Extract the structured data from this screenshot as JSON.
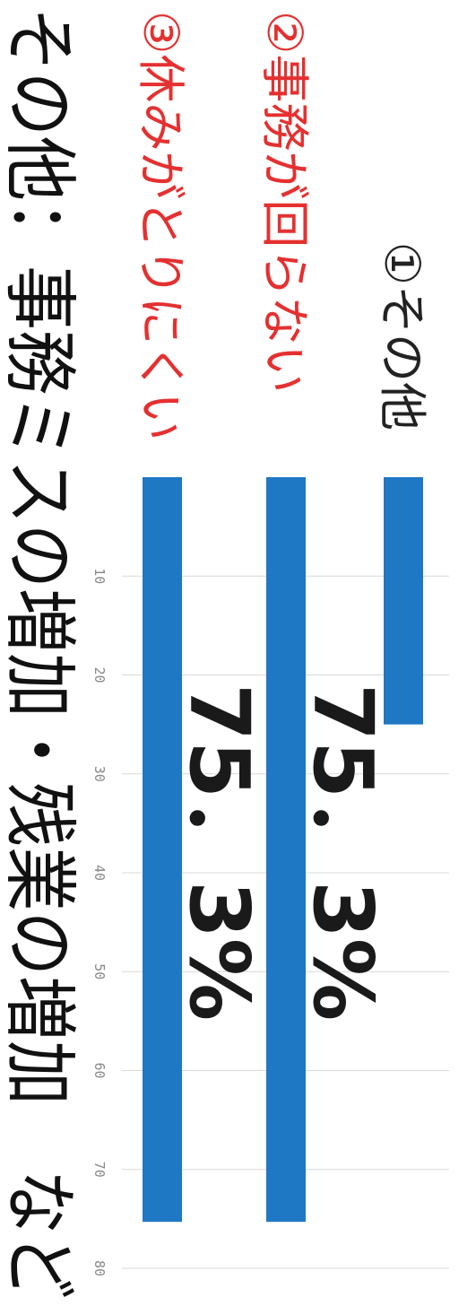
{
  "colors": {
    "bar": "#1f78c4",
    "highlight_label": "#e53030",
    "normal_label": "#222222",
    "gridline": "#d8d8d8",
    "tick": "#888888"
  },
  "chart_data": {
    "type": "bar",
    "orientation": "horizontal",
    "categories": [
      "①その他",
      "②事務が回らない",
      "③休みがとりにくい"
    ],
    "values": [
      25,
      75.3,
      75.3
    ],
    "data_labels": [
      "",
      "75．3%",
      "75．3%"
    ],
    "xticks": [
      "10",
      "20",
      "30",
      "40",
      "50",
      "60",
      "70",
      "80"
    ],
    "xlim": [
      0,
      80
    ],
    "grid": true,
    "highlighted_categories": [
      1,
      2
    ]
  },
  "footnote": "その他：事務ミスの増加・残業の増加　など"
}
